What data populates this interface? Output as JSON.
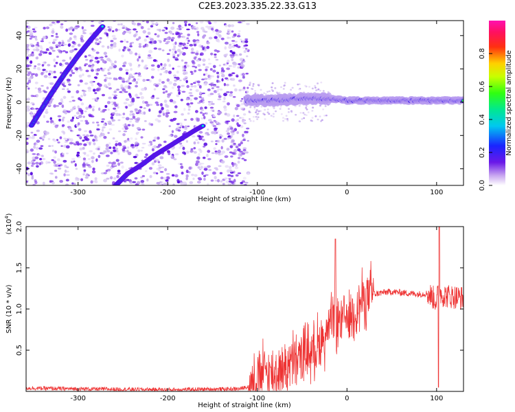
{
  "title": "C2E3.2023.335.22.33.G13",
  "chart_data": [
    {
      "type": "heatmap",
      "xlabel": "Height of straight line (km)",
      "ylabel": "Frequency (Hz)",
      "xlim": [
        -358,
        130
      ],
      "ylim": [
        -50,
        49
      ],
      "xticks": [
        -300,
        -200,
        -100,
        0,
        100
      ],
      "yticks": [
        -40,
        -20,
        0,
        20,
        40
      ],
      "colorbar": {
        "label": "Normalized spectral amplitude",
        "range": [
          0,
          1
        ],
        "ticks": [
          0.0,
          0.2,
          0.4,
          0.6,
          0.8
        ],
        "colormap": "rainbow (white-purple-blue-cyan-green-yellow-red-magenta)"
      },
      "features": [
        {
          "name": "diagonal trace A",
          "x": [
            -352,
            -330,
            -315,
            -300,
            -285,
            -272
          ],
          "y": [
            -14,
            5,
            17,
            28,
            38,
            46
          ]
        },
        {
          "name": "diagonal trace B",
          "x": [
            -258,
            -245,
            -230,
            -215,
            -200,
            -185,
            -170,
            -160
          ],
          "y": [
            -50,
            -43,
            -38,
            -32,
            -27,
            -22,
            -17,
            -14
          ]
        },
        {
          "name": "horizontal band near 0 Hz",
          "x": [
            -110,
            -80,
            -50,
            -20,
            0,
            50,
            100,
            130
          ],
          "y": [
            1,
            1,
            2,
            2,
            1,
            1,
            1,
            1
          ]
        }
      ]
    },
    {
      "type": "line",
      "xlabel": "Height of straight line (km)",
      "ylabel": "SNR (10 * v/v)",
      "y_multiplier": "(x10",
      "y_multiplier_exp": "4",
      "y_multiplier_close": ")",
      "xlim": [
        -358,
        130
      ],
      "ylim": [
        0,
        2.0
      ],
      "xticks": [
        -300,
        -200,
        -100,
        0,
        100
      ],
      "yticks": [
        0.5,
        1.0,
        1.5,
        2.0
      ],
      "series": [
        {
          "color": "#ee3333",
          "x": [
            -358,
            -300,
            -200,
            -120,
            -110,
            -100,
            -90,
            -80,
            -70,
            -60,
            -50,
            -40,
            -30,
            -20,
            -15,
            -10,
            0,
            10,
            20,
            30,
            40,
            50,
            60,
            70,
            80,
            90,
            95,
            100,
            103,
            105,
            110,
            120,
            130
          ],
          "y": [
            0.04,
            0.03,
            0.02,
            0.03,
            0.06,
            0.2,
            0.25,
            0.2,
            0.3,
            0.35,
            0.45,
            0.5,
            0.6,
            0.75,
            0.9,
            0.85,
            0.9,
            1.0,
            1.15,
            1.18,
            1.2,
            1.21,
            1.2,
            1.19,
            1.18,
            1.19,
            1.15,
            1.1,
            1.25,
            1.18,
            1.16,
            1.15,
            1.13
          ]
        }
      ]
    }
  ]
}
